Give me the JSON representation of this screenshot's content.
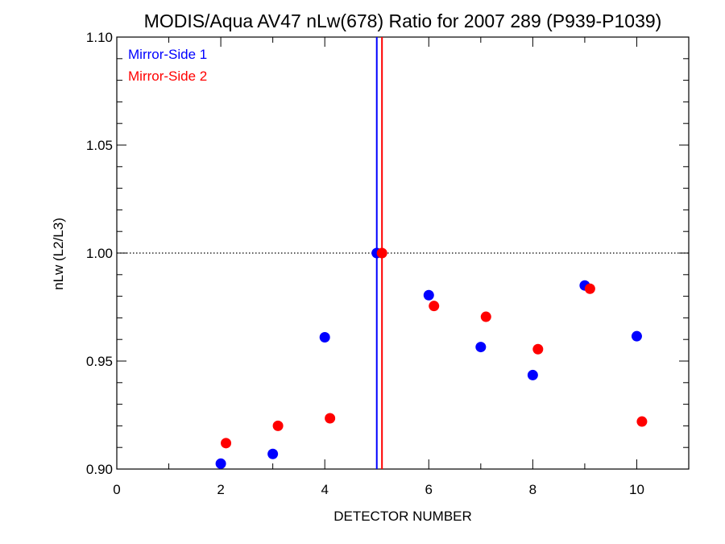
{
  "chart_data": {
    "type": "scatter",
    "title": "MODIS/Aqua AV47 nLw(678) Ratio for 2007 289 (P939-P1039)",
    "xlabel": "DETECTOR NUMBER",
    "ylabel": "nLw (L2/L3)",
    "xlim": [
      0,
      11
    ],
    "ylim": [
      0.9,
      1.1
    ],
    "x_ticks": [
      0,
      2,
      4,
      6,
      8,
      10
    ],
    "x_tick_labels": [
      "0",
      "2",
      "4",
      "6",
      "8",
      "10"
    ],
    "y_ticks": [
      0.9,
      0.95,
      1.0,
      1.05,
      1.1
    ],
    "y_tick_labels": [
      "0.90",
      "0.95",
      "1.00",
      "1.05",
      "1.10"
    ],
    "reference_line": {
      "y": 1.0,
      "style": "dotted"
    },
    "vertical_lines": [
      {
        "x": 5.0,
        "color": "#0000ff"
      },
      {
        "x": 5.1,
        "color": "#ff0000"
      }
    ],
    "legend_position": "top-left",
    "series": [
      {
        "name": "Mirror-Side 1",
        "color": "#0000ff",
        "points": [
          {
            "x": 2,
            "y": 0.9025
          },
          {
            "x": 3,
            "y": 0.907
          },
          {
            "x": 4,
            "y": 0.961
          },
          {
            "x": 5,
            "y": 1.0
          },
          {
            "x": 6,
            "y": 0.9805
          },
          {
            "x": 7,
            "y": 0.9565
          },
          {
            "x": 8,
            "y": 0.9435
          },
          {
            "x": 9,
            "y": 0.985
          },
          {
            "x": 10,
            "y": 0.9615
          }
        ]
      },
      {
        "name": "Mirror-Side 2",
        "color": "#ff0000",
        "points": [
          {
            "x": 2.1,
            "y": 0.912
          },
          {
            "x": 3.1,
            "y": 0.92
          },
          {
            "x": 4.1,
            "y": 0.9235
          },
          {
            "x": 5.1,
            "y": 1.0
          },
          {
            "x": 6.1,
            "y": 0.9755
          },
          {
            "x": 7.1,
            "y": 0.9705
          },
          {
            "x": 8.1,
            "y": 0.9555
          },
          {
            "x": 9.1,
            "y": 0.9835
          },
          {
            "x": 10.1,
            "y": 0.922
          }
        ]
      }
    ]
  }
}
